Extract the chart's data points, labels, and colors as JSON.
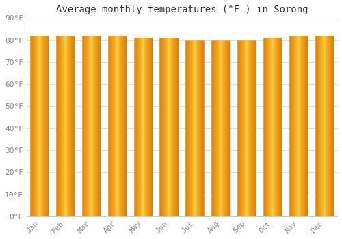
{
  "title": "Average monthly temperatures (°F ) in Sorong",
  "months": [
    "Jan",
    "Feb",
    "Mar",
    "Apr",
    "May",
    "Jun",
    "Jul",
    "Aug",
    "Sep",
    "Oct",
    "Nov",
    "Dec"
  ],
  "values": [
    82,
    82,
    82,
    82,
    81,
    81,
    80,
    80,
    80,
    81,
    82,
    82
  ],
  "bar_color_center": "#FFD050",
  "bar_color_edge": "#E07800",
  "bar_color_mid": "#FFA020",
  "bar_edge_color": "#CC8800",
  "ylim": [
    0,
    90
  ],
  "yticks": [
    0,
    10,
    20,
    30,
    40,
    50,
    60,
    70,
    80,
    90
  ],
  "ytick_labels": [
    "0°F",
    "10°F",
    "20°F",
    "30°F",
    "40°F",
    "50°F",
    "60°F",
    "70°F",
    "80°F",
    "90°F"
  ],
  "background_color": "#FFFFFF",
  "grid_color": "#E0E0E0",
  "title_fontsize": 10,
  "tick_fontsize": 8,
  "font_family": "monospace",
  "bar_width": 0.72,
  "figsize": [
    5.0,
    3.5
  ],
  "dpi": 100
}
